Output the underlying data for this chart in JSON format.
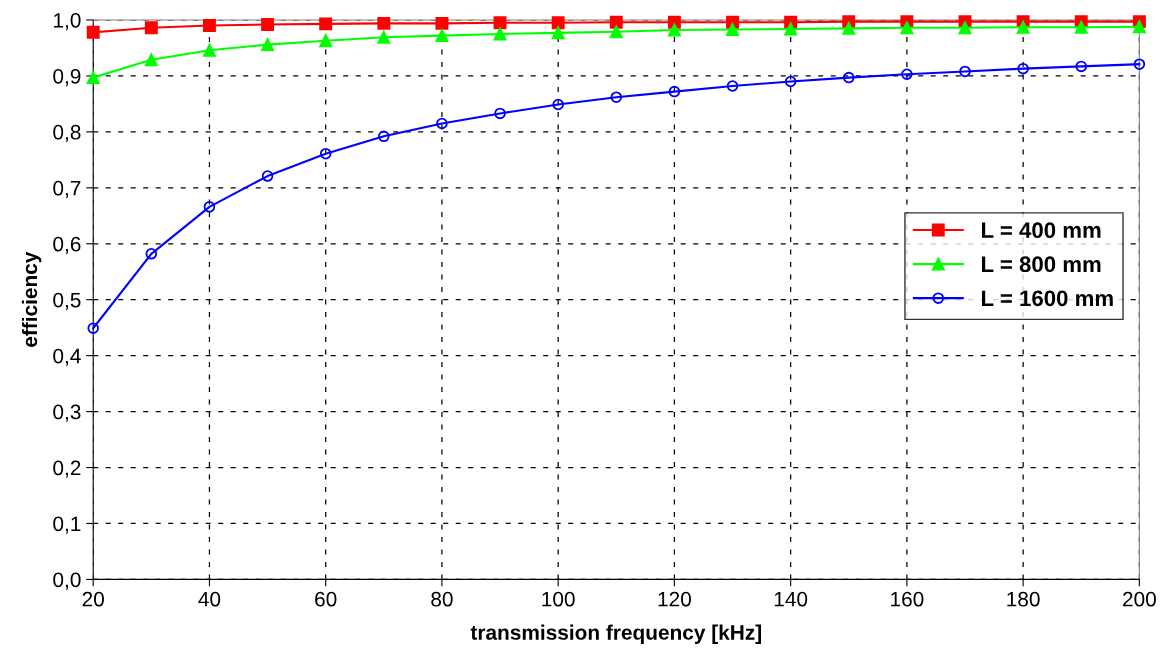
{
  "chart_data": {
    "type": "line",
    "xlabel": "transmission frequency [kHz]",
    "ylabel": "efficiency",
    "x": [
      20,
      30,
      40,
      50,
      60,
      70,
      80,
      90,
      100,
      110,
      120,
      130,
      140,
      150,
      160,
      170,
      180,
      190,
      200
    ],
    "series": [
      {
        "name": "L = 400 mm",
        "color": "#ff0000",
        "marker": "square",
        "values": [
          0.978,
          0.986,
          0.99,
          0.992,
          0.993,
          0.994,
          0.994,
          0.995,
          0.995,
          0.996,
          0.996,
          0.996,
          0.996,
          0.997,
          0.997,
          0.997,
          0.997,
          0.997,
          0.997
        ]
      },
      {
        "name": "L = 800 mm",
        "color": "#00ff00",
        "marker": "triangle",
        "values": [
          0.897,
          0.929,
          0.946,
          0.956,
          0.963,
          0.969,
          0.972,
          0.975,
          0.977,
          0.979,
          0.982,
          0.983,
          0.984,
          0.985,
          0.986,
          0.986,
          0.987,
          0.987,
          0.988
        ]
      },
      {
        "name": "L = 1600 mm",
        "color": "#0000ff",
        "marker": "circle",
        "values": [
          0.449,
          0.582,
          0.666,
          0.721,
          0.761,
          0.792,
          0.815,
          0.833,
          0.849,
          0.862,
          0.872,
          0.882,
          0.89,
          0.897,
          0.903,
          0.908,
          0.913,
          0.917,
          0.921
        ]
      }
    ],
    "xlim": [
      20,
      200
    ],
    "xticks": [
      20,
      40,
      60,
      80,
      100,
      120,
      140,
      160,
      180,
      200
    ],
    "ylim": [
      0,
      1
    ],
    "yticks": [
      {
        "value": 0,
        "label": "0,0"
      },
      {
        "value": 0.1,
        "label": "0,1"
      },
      {
        "value": 0.2,
        "label": "0,2"
      },
      {
        "value": 0.3,
        "label": "0,3"
      },
      {
        "value": 0.4,
        "label": "0,4"
      },
      {
        "value": 0.5,
        "label": "0,5"
      },
      {
        "value": 0.6,
        "label": "0,6"
      },
      {
        "value": 0.7,
        "label": "0,7"
      },
      {
        "value": 0.8,
        "label": "0,8"
      },
      {
        "value": 0.9,
        "label": "0,9"
      },
      {
        "value": 1.0,
        "label": "1,0"
      }
    ],
    "grid": true,
    "legend": "right",
    "line_style": "solid"
  }
}
